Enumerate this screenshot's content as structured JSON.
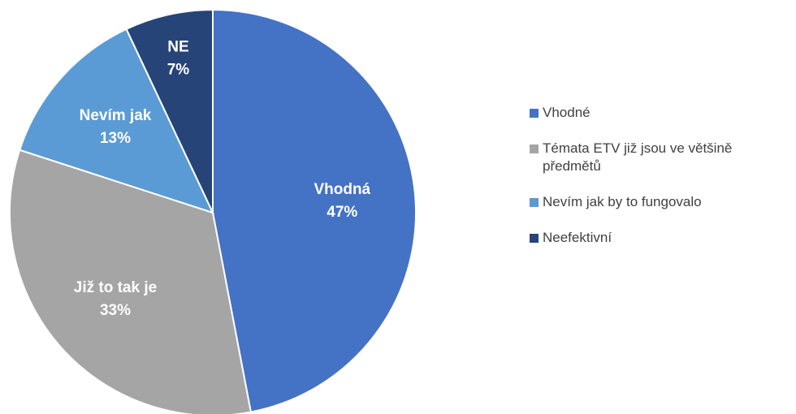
{
  "chart_data": {
    "type": "pie",
    "categories": [
      "Vhodné",
      "Témata ETV již jsou ve většině předmětů",
      "Nevím jak by to fungovalo",
      "Neefektivní"
    ],
    "slice_labels": [
      "Vhodná",
      "Již to tak je",
      "Nevím jak",
      "NE"
    ],
    "values": [
      47,
      33,
      13,
      7
    ],
    "value_labels": [
      "47%",
      "33%",
      "13%",
      "7%"
    ],
    "colors": [
      "#4472c4",
      "#a5a5a5",
      "#5b9bd5",
      "#264478"
    ],
    "legend": "right"
  }
}
